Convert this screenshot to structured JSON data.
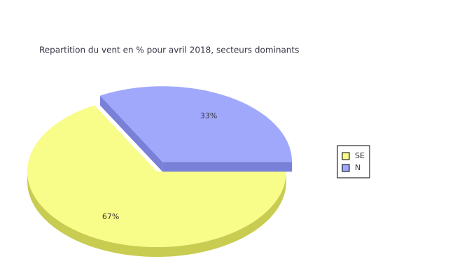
{
  "chart_data": {
    "type": "pie3d",
    "title": "Repartition du vent en % pour avril 2018, secteurs dominants",
    "categories": [
      "SE",
      "N"
    ],
    "values": [
      67,
      33
    ],
    "value_labels": [
      "67%",
      "33%"
    ],
    "colors": [
      "#f8fc88",
      "#a0a8fc"
    ],
    "side_colors": [
      "#c8cc50",
      "#7880d8"
    ],
    "legend": "right"
  }
}
